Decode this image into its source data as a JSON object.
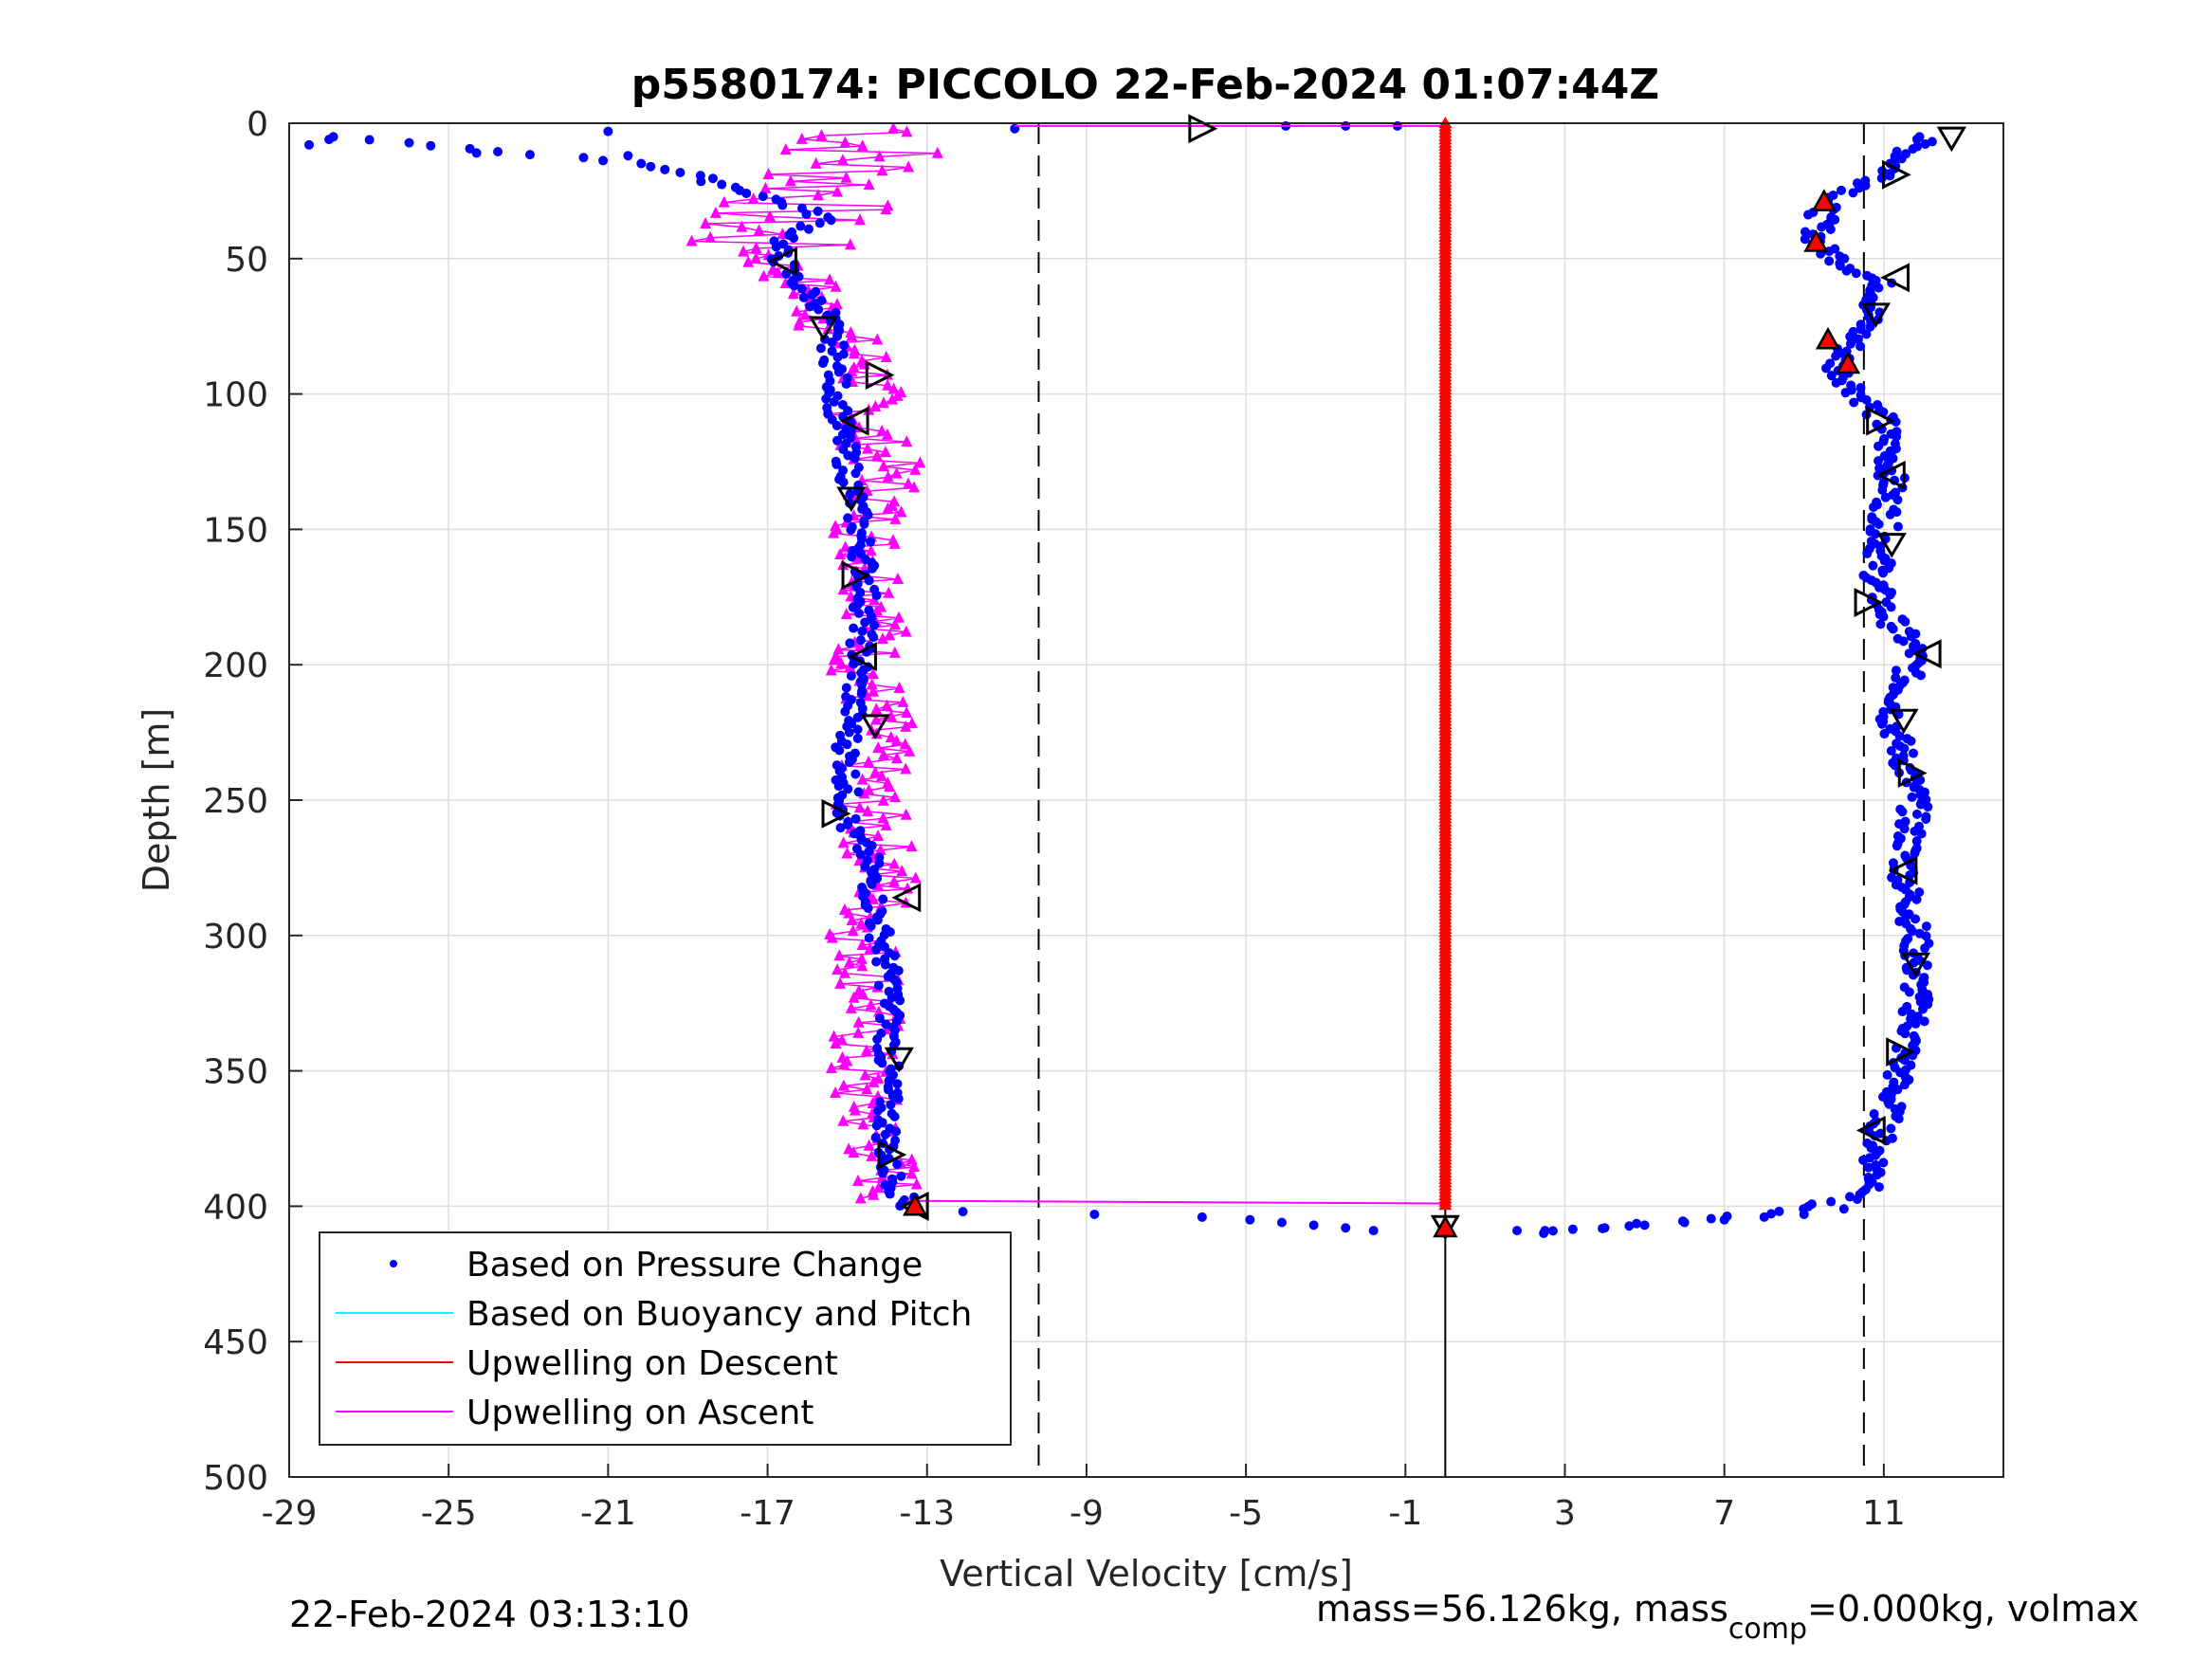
{
  "chart_data": {
    "type": "scatter",
    "title": "p5580174: PICCOLO 22-Feb-2024 01:07:44Z",
    "xlabel": "Vertical Velocity [cm/s]",
    "ylabel": "Depth [m]",
    "xlim": [
      -29,
      14
    ],
    "ylim": [
      0,
      500
    ],
    "y_reversed": true,
    "xticks": [
      "-29",
      "-25",
      "-21",
      "-17",
      "-13",
      "-9",
      "-5",
      "-1",
      "3",
      "7",
      "11"
    ],
    "xtick_values": [
      -29,
      -25,
      -21,
      -17,
      -13,
      -9,
      -5,
      -1,
      3,
      7,
      11
    ],
    "yticks": [
      "0",
      "50",
      "100",
      "150",
      "200",
      "250",
      "300",
      "350",
      "400",
      "450",
      "500"
    ],
    "ytick_values": [
      0,
      50,
      100,
      150,
      200,
      250,
      300,
      350,
      400,
      450,
      500
    ],
    "grid": true,
    "reference_lines": [
      -10.2,
      0,
      10.5
    ],
    "legend_position": "bottom-left",
    "legend": [
      {
        "label": "Based on Pressure Change",
        "color": "#0000ff",
        "style": "dot"
      },
      {
        "label": "Based on Buoyancy and Pitch",
        "color": "#00ffff",
        "style": "line"
      },
      {
        "label": "Upwelling on Descent",
        "color": "#ff0000",
        "style": "line"
      },
      {
        "label": "Upwelling on Ascent",
        "color": "#ff00ff",
        "style": "line"
      }
    ],
    "series": [
      {
        "name": "Based on Pressure Change",
        "role": "descent",
        "color": "#0000ff",
        "depth": [
          5,
          20,
          30,
          45,
          60,
          75,
          90,
          110,
          130,
          150,
          170,
          180,
          195,
          220,
          250,
          275,
          300,
          330,
          360,
          380,
          395,
          402,
          405,
          408,
          410
        ],
        "velocity": [
          12,
          11,
          9.5,
          9.3,
          11,
          10.5,
          9.8,
          11,
          11.2,
          11,
          10.8,
          11,
          11.8,
          11.2,
          11.8,
          11.5,
          11.8,
          11.8,
          11.2,
          10.8,
          10.8,
          8.5,
          6,
          4,
          2.2
        ]
      },
      {
        "name": "Based on Pressure Change",
        "role": "ascent",
        "color": "#0000ff",
        "depth": [
          400,
          385,
          350,
          320,
          290,
          270,
          260,
          230,
          200,
          170,
          140,
          110,
          90,
          70,
          55,
          45,
          35,
          25,
          15,
          10,
          5
        ],
        "velocity": [
          -13.5,
          -14,
          -14,
          -13.9,
          -14.3,
          -14.5,
          -15,
          -15,
          -14.7,
          -14.5,
          -14.8,
          -15.2,
          -15.3,
          -15.5,
          -16.5,
          -16.8,
          -15.5,
          -17.5,
          -20,
          -24,
          -28
        ]
      },
      {
        "name": "Based on Pressure Change",
        "role": "bottom-turn",
        "color": "#0000ff",
        "depth": [
          402,
          403,
          404,
          405,
          406,
          407,
          408,
          409
        ],
        "velocity": [
          -12.1,
          -8.8,
          -6.1,
          -4.9,
          -4.1,
          -3.3,
          -2.5,
          -1.8
        ]
      },
      {
        "name": "Upwelling on Descent",
        "color": "#ff0000",
        "depth": [
          0,
          400
        ],
        "velocity": [
          0,
          0
        ]
      },
      {
        "name": "Upwelling on Ascent",
        "color": "#ff00ff",
        "depth": [
          400,
          380,
          350,
          320,
          300,
          280,
          250,
          220,
          200,
          180,
          150,
          130,
          110,
          90,
          75,
          60,
          50,
          40,
          30,
          20,
          10,
          5
        ],
        "velocity": [
          -13.8,
          -14.2,
          -14.8,
          -14.3,
          -14.6,
          -14,
          -14.5,
          -14.2,
          -14.6,
          -14.1,
          -14.5,
          -13.9,
          -14.6,
          -14.4,
          -15.4,
          -16,
          -17,
          -17.5,
          -16,
          -15,
          -14.5,
          -15
        ]
      }
    ],
    "triangle_markers": [
      {
        "depth": 2,
        "velocity": -6.1
      },
      {
        "depth": 51,
        "velocity": -16.6
      },
      {
        "depth": 75,
        "velocity": -15.6
      },
      {
        "depth": 93,
        "velocity": -14.2
      },
      {
        "depth": 110,
        "velocity": -14.8
      },
      {
        "depth": 138,
        "velocity": -14.9
      },
      {
        "depth": 167,
        "velocity": -14.8
      },
      {
        "depth": 197,
        "velocity": -14.6
      },
      {
        "depth": 222,
        "velocity": -14.3
      },
      {
        "depth": 255,
        "velocity": -15.3
      },
      {
        "depth": 286,
        "velocity": -13.5
      },
      {
        "depth": 345,
        "velocity": -13.7
      },
      {
        "depth": 381,
        "velocity": -13.9
      },
      {
        "depth": 400,
        "velocity": -13.3
      },
      {
        "depth": 5,
        "velocity": 12.7
      },
      {
        "depth": 19,
        "velocity": 11.3
      },
      {
        "depth": 57,
        "velocity": 11.3
      },
      {
        "depth": 70,
        "velocity": 10.8
      },
      {
        "depth": 110,
        "velocity": 10.9
      },
      {
        "depth": 130,
        "velocity": 11.2
      },
      {
        "depth": 155,
        "velocity": 11.2
      },
      {
        "depth": 177,
        "velocity": 10.6
      },
      {
        "depth": 196,
        "velocity": 12.1
      },
      {
        "depth": 220,
        "velocity": 11.5
      },
      {
        "depth": 240,
        "velocity": 11.7
      },
      {
        "depth": 276,
        "velocity": 11.5
      },
      {
        "depth": 310,
        "velocity": 11.8
      },
      {
        "depth": 343,
        "velocity": 11.4
      },
      {
        "depth": 372,
        "velocity": 10.7
      },
      {
        "depth": 407,
        "velocity": 0
      }
    ],
    "red_markers": [
      {
        "depth": 29,
        "velocity": 9.5
      },
      {
        "depth": 44,
        "velocity": 9.3
      },
      {
        "depth": 80,
        "velocity": 9.6
      },
      {
        "depth": 89,
        "velocity": 10.1
      },
      {
        "depth": 400,
        "velocity": -13.3
      },
      {
        "depth": 408,
        "velocity": 0
      }
    ]
  },
  "footer": {
    "timestamp": "22-Feb-2024 03:13:10",
    "mass_text_a": "mass=56.126kg, mass",
    "mass_sub": "comp",
    "mass_text_b": "=0.000kg, volmax"
  }
}
